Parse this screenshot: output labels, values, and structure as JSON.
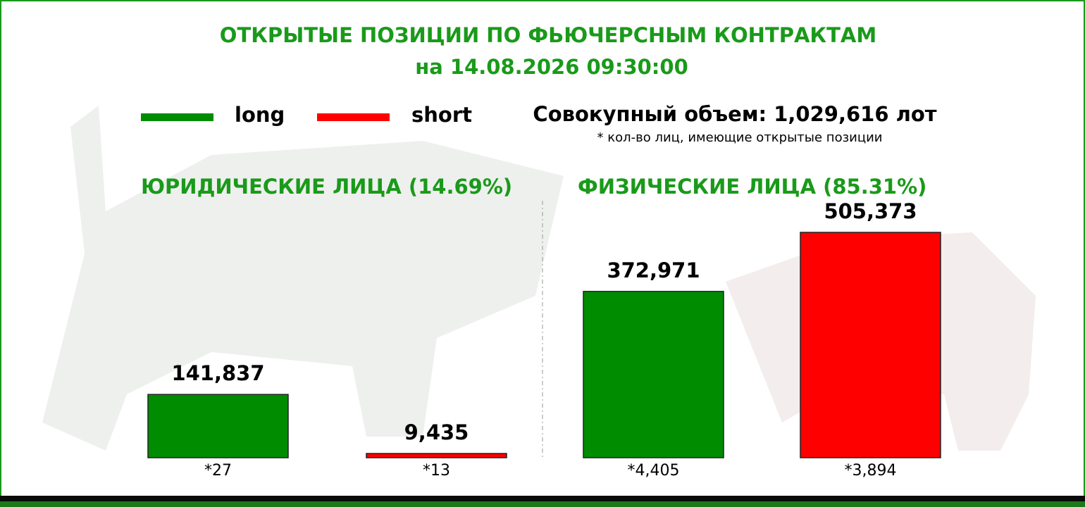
{
  "title": "ОТКРЫТЫЕ ПОЗИЦИИ ПО ФЬЮЧЕРСНЫМ КОНТРАКТАМ",
  "subtitle": "на 14.08.2026 09:30:00",
  "legend": [
    {
      "name": "long",
      "color": "#008c00"
    },
    {
      "name": "short",
      "color": "#ff0000"
    }
  ],
  "total": "Совокупный объем: 1,029,616 лот",
  "footnote": "* кол-во лиц, имеющие открытые позиции",
  "chart_data": [
    {
      "type": "bar",
      "title": "ЮРИДИЧЕСКИЕ ЛИЦА (14.69%)",
      "values": [
        141837,
        9435
      ],
      "value_labels": [
        "141,837",
        "9,435"
      ],
      "counts": [
        "*27",
        "*13"
      ]
    },
    {
      "type": "bar",
      "title": "ФИЗИЧЕСКИЕ ЛИЦА (85.31%)",
      "values": [
        372971,
        505373
      ],
      "value_labels": [
        "372,971",
        "505,373"
      ],
      "counts": [
        "*4,405",
        "*3,894"
      ]
    }
  ]
}
